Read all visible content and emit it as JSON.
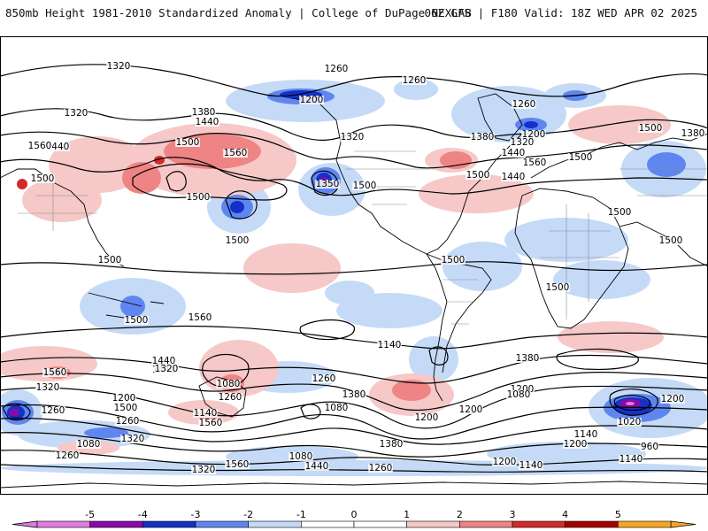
{
  "header": {
    "left": "850mb Height 1981-2010 Standardized Anomaly | College of DuPage NEXLAB",
    "right": "06Z GFS | F180 Valid: 18Z WED APR 02 2025"
  },
  "map": {
    "projection": "cylindrical global",
    "contour_field": "850mb geopotential height (m)",
    "shading_field": "standardized anomaly",
    "height_labels": [
      "1320",
      "1320",
      "1380",
      "1440",
      "1500",
      "1440",
      "1560",
      "1560",
      "1500",
      "1500",
      "1260",
      "1200",
      "1260",
      "1260",
      "1200",
      "1320",
      "1350",
      "1320",
      "1380",
      "1440",
      "1500",
      "1560",
      "1500",
      "1440",
      "1500",
      "1380",
      "1500",
      "1500",
      "1500",
      "1500",
      "1500",
      "1500",
      "1500",
      "1560",
      "1500",
      "1440",
      "1380",
      "1380",
      "1260",
      "1440",
      "1560",
      "1320",
      "1200",
      "1080",
      "1260",
      "1320",
      "1200",
      "1140",
      "1080",
      "1260",
      "1200",
      "1140",
      "1500",
      "1560",
      "1380",
      "1440",
      "1200",
      "1080",
      "1020",
      "960",
      "1140",
      "1260",
      "1320",
      "1260",
      "1080",
      "1200",
      "1140",
      "1080",
      "1200",
      "1140",
      "1260",
      "1200",
      "1320",
      "1560"
    ],
    "colors": {
      "neg5": "#e07be0",
      "neg4": "#8a0aa8",
      "neg3": "#1530c8",
      "neg2": "#5f86f0",
      "neg1": "#c4daf7",
      "pos1": "#f6c8c8",
      "pos2": "#ee8484",
      "pos3": "#d42a2a",
      "pos4": "#a80000",
      "pos5": "#f5a623",
      "contour": "#000000",
      "coast": "#000000",
      "border": "#8c8c8c"
    }
  },
  "colorbar": {
    "tick_labels": [
      "-5",
      "-4",
      "-3",
      "-2",
      "-1",
      "0",
      "1",
      "2",
      "3",
      "4",
      "5"
    ]
  }
}
